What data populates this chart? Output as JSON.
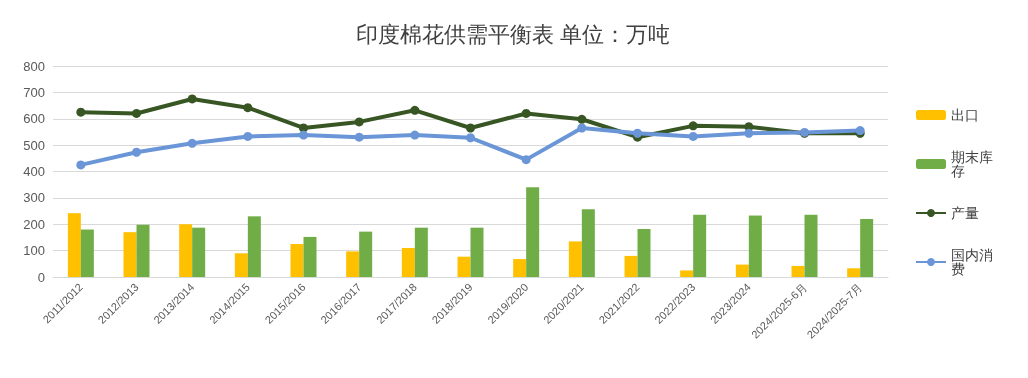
{
  "chart_data": {
    "type": "bar",
    "title": "印度棉花供需平衡表 单位：万吨",
    "categories": [
      "2011/2012",
      "2012/2013",
      "2013/2014",
      "2014/2015",
      "2015/2016",
      "2016/2017",
      "2017/2018",
      "2018/2019",
      "2019/2020",
      "2020/2021",
      "2021/2022",
      "2022/2023",
      "2023/2024",
      "2024/2025-6月",
      "2024/2025-7月"
    ],
    "series": [
      {
        "name": "出口",
        "color": "#ffc000",
        "values": [
          242,
          170,
          200,
          90,
          125,
          97,
          110,
          77,
          68,
          135,
          80,
          25,
          47,
          42,
          33
        ]
      },
      {
        "name": "期末库存",
        "color": "#70ad47",
        "values": [
          180,
          198,
          187,
          230,
          152,
          172,
          187,
          187,
          340,
          257,
          182,
          236,
          233,
          236,
          220
        ]
      },
      {
        "name": "产量",
        "type": "line",
        "color": "#375623",
        "values": [
          625,
          620,
          675,
          642,
          565,
          588,
          632,
          565,
          620,
          598,
          530,
          573,
          570,
          545,
          545
        ]
      },
      {
        "name": "国内消费",
        "type": "line",
        "color": "#6a96d8",
        "values": [
          425,
          473,
          507,
          533,
          538,
          530,
          538,
          528,
          445,
          565,
          545,
          533,
          545,
          548,
          555
        ]
      }
    ],
    "ylim": [
      0,
      800
    ],
    "yticks": [
      0,
      100,
      200,
      300,
      400,
      500,
      600,
      700,
      800
    ],
    "grid": "y",
    "legend": "right",
    "marker": "circle"
  }
}
